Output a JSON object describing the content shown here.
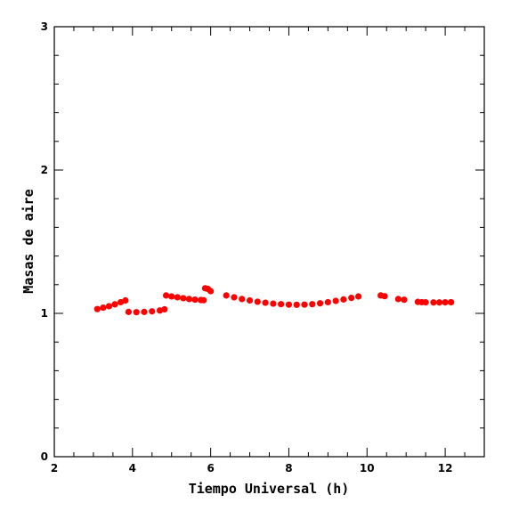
{
  "chart_data": {
    "type": "scatter",
    "xlabel": "Tiempo Universal (h)",
    "ylabel": "Masas de aire",
    "xlim": [
      2,
      13
    ],
    "ylim": [
      0,
      3
    ],
    "xticks": [
      "2",
      "4",
      "6",
      "8",
      "10",
      "12"
    ],
    "yticks": [
      "0",
      "1",
      "2",
      "3"
    ],
    "grid": false,
    "legend": "none",
    "series": [
      {
        "color": "#ff0000",
        "points": [
          [
            3.1,
            1.03
          ],
          [
            3.25,
            1.04
          ],
          [
            3.4,
            1.05
          ],
          [
            3.55,
            1.063
          ],
          [
            3.7,
            1.078
          ],
          [
            3.82,
            1.09
          ],
          [
            3.9,
            1.01
          ],
          [
            4.1,
            1.008
          ],
          [
            4.3,
            1.01
          ],
          [
            4.5,
            1.014
          ],
          [
            4.7,
            1.02
          ],
          [
            4.82,
            1.028
          ],
          [
            4.86,
            1.125
          ],
          [
            5.0,
            1.118
          ],
          [
            5.15,
            1.112
          ],
          [
            5.3,
            1.106
          ],
          [
            5.45,
            1.1
          ],
          [
            5.6,
            1.096
          ],
          [
            5.75,
            1.093
          ],
          [
            5.82,
            1.092
          ],
          [
            5.86,
            1.175
          ],
          [
            5.93,
            1.17
          ],
          [
            6.0,
            1.155
          ],
          [
            6.4,
            1.125
          ],
          [
            6.6,
            1.112
          ],
          [
            6.8,
            1.1
          ],
          [
            7.0,
            1.09
          ],
          [
            7.2,
            1.081
          ],
          [
            7.4,
            1.074
          ],
          [
            7.6,
            1.068
          ],
          [
            7.8,
            1.064
          ],
          [
            8.0,
            1.061
          ],
          [
            8.2,
            1.06
          ],
          [
            8.4,
            1.061
          ],
          [
            8.6,
            1.064
          ],
          [
            8.8,
            1.07
          ],
          [
            9.0,
            1.078
          ],
          [
            9.2,
            1.087
          ],
          [
            9.4,
            1.097
          ],
          [
            9.6,
            1.108
          ],
          [
            9.78,
            1.118
          ],
          [
            10.35,
            1.125
          ],
          [
            10.45,
            1.12
          ],
          [
            10.8,
            1.1
          ],
          [
            10.95,
            1.095
          ],
          [
            11.3,
            1.08
          ],
          [
            11.4,
            1.078
          ],
          [
            11.5,
            1.077
          ],
          [
            11.7,
            1.076
          ],
          [
            11.85,
            1.076
          ],
          [
            12.0,
            1.077
          ],
          [
            12.15,
            1.078
          ]
        ]
      }
    ]
  }
}
